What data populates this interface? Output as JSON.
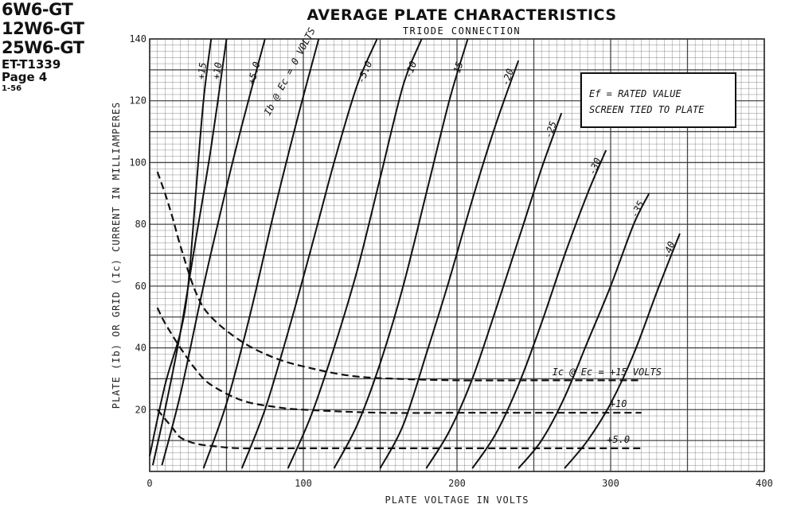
{
  "header": {
    "tube_types": [
      "6W6-GT",
      "12W6-GT",
      "25W6-GT"
    ],
    "doc_number": "ET-T1339",
    "page": "Page 4",
    "date": "1-56"
  },
  "chart_data": {
    "type": "line",
    "title": "AVERAGE PLATE CHARACTERISTICS",
    "subtitle": "TRIODE CONNECTION",
    "xlabel": "PLATE VOLTAGE IN VOLTS",
    "ylabel": "PLATE (Ib) OR GRID (Ic) CURRENT IN MILLIAMPERES",
    "xlim": [
      0,
      400
    ],
    "ylim": [
      0,
      140
    ],
    "xticks": [
      0,
      100,
      200,
      300,
      400
    ],
    "yticks": [
      20,
      40,
      60,
      80,
      100,
      120,
      140
    ],
    "grid": true,
    "note_lines": [
      "Ef = RATED VALUE",
      "SCREEN TIED TO PLATE"
    ],
    "plate_family_label": "Ib @ Ec = 0 VOLTS",
    "grid_family_label": "Ic @ Ec = +15 VOLTS",
    "plate_curves": [
      {
        "label": "+15",
        "points": [
          [
            0,
            5
          ],
          [
            10,
            28
          ],
          [
            20,
            45
          ],
          [
            25,
            60
          ],
          [
            30,
            90
          ],
          [
            35,
            120
          ],
          [
            40,
            140
          ]
        ]
      },
      {
        "label": "+10",
        "points": [
          [
            2,
            2
          ],
          [
            10,
            20
          ],
          [
            20,
            45
          ],
          [
            30,
            75
          ],
          [
            40,
            105
          ],
          [
            50,
            140
          ]
        ]
      },
      {
        "label": "+5.0",
        "points": [
          [
            8,
            2
          ],
          [
            20,
            25
          ],
          [
            35,
            60
          ],
          [
            50,
            92
          ],
          [
            60,
            112
          ],
          [
            75,
            140
          ]
        ]
      },
      {
        "label": "0",
        "points": [
          [
            35,
            1
          ],
          [
            50,
            22
          ],
          [
            65,
            50
          ],
          [
            80,
            82
          ],
          [
            95,
            112
          ],
          [
            110,
            140
          ]
        ]
      },
      {
        "label": "-5.0",
        "points": [
          [
            60,
            1
          ],
          [
            75,
            20
          ],
          [
            90,
            45
          ],
          [
            105,
            72
          ],
          [
            120,
            100
          ],
          [
            135,
            125
          ],
          [
            148,
            140
          ]
        ]
      },
      {
        "label": "-10",
        "points": [
          [
            90,
            1
          ],
          [
            105,
            18
          ],
          [
            120,
            40
          ],
          [
            135,
            65
          ],
          [
            150,
            95
          ],
          [
            165,
            125
          ],
          [
            177,
            140
          ]
        ]
      },
      {
        "label": "-15",
        "points": [
          [
            120,
            1
          ],
          [
            135,
            15
          ],
          [
            150,
            35
          ],
          [
            165,
            60
          ],
          [
            180,
            90
          ],
          [
            195,
            120
          ],
          [
            207,
            140
          ]
        ]
      },
      {
        "label": "-20",
        "points": [
          [
            150,
            1
          ],
          [
            165,
            15
          ],
          [
            180,
            38
          ],
          [
            195,
            62
          ],
          [
            210,
            88
          ],
          [
            225,
            112
          ],
          [
            240,
            133
          ]
        ]
      },
      {
        "label": "-25",
        "points": [
          [
            180,
            1
          ],
          [
            195,
            13
          ],
          [
            210,
            30
          ],
          [
            225,
            52
          ],
          [
            240,
            75
          ],
          [
            255,
            98
          ],
          [
            268,
            116
          ]
        ]
      },
      {
        "label": "-30",
        "points": [
          [
            210,
            1
          ],
          [
            225,
            12
          ],
          [
            240,
            28
          ],
          [
            255,
            48
          ],
          [
            270,
            70
          ],
          [
            285,
            90
          ],
          [
            297,
            104
          ]
        ]
      },
      {
        "label": "-35",
        "points": [
          [
            240,
            1
          ],
          [
            255,
            10
          ],
          [
            270,
            24
          ],
          [
            285,
            42
          ],
          [
            300,
            60
          ],
          [
            315,
            80
          ],
          [
            325,
            90
          ]
        ]
      },
      {
        "label": "-40",
        "points": [
          [
            270,
            1
          ],
          [
            285,
            10
          ],
          [
            300,
            22
          ],
          [
            315,
            38
          ],
          [
            330,
            58
          ],
          [
            345,
            77
          ]
        ]
      }
    ],
    "grid_curves": [
      {
        "label": "+15",
        "points": [
          [
            5,
            97
          ],
          [
            10,
            90
          ],
          [
            15,
            82
          ],
          [
            20,
            73
          ],
          [
            30,
            58
          ],
          [
            40,
            50
          ],
          [
            60,
            42
          ],
          [
            80,
            37
          ],
          [
            100,
            34
          ],
          [
            130,
            31
          ],
          [
            160,
            30
          ],
          [
            200,
            29.5
          ],
          [
            250,
            29.5
          ],
          [
            320,
            29.5
          ]
        ]
      },
      {
        "label": "+10",
        "points": [
          [
            5,
            53
          ],
          [
            10,
            48
          ],
          [
            20,
            40
          ],
          [
            30,
            33
          ],
          [
            40,
            28
          ],
          [
            60,
            23
          ],
          [
            80,
            21
          ],
          [
            100,
            20
          ],
          [
            150,
            19
          ],
          [
            200,
            19
          ],
          [
            250,
            19
          ],
          [
            320,
            19
          ]
        ]
      },
      {
        "label": "+5.0",
        "points": [
          [
            5,
            20
          ],
          [
            10,
            17
          ],
          [
            15,
            14
          ],
          [
            20,
            11
          ],
          [
            30,
            9
          ],
          [
            45,
            8
          ],
          [
            60,
            7.5
          ],
          [
            100,
            7.5
          ],
          [
            200,
            7.5
          ],
          [
            320,
            7.5
          ]
        ]
      }
    ]
  }
}
